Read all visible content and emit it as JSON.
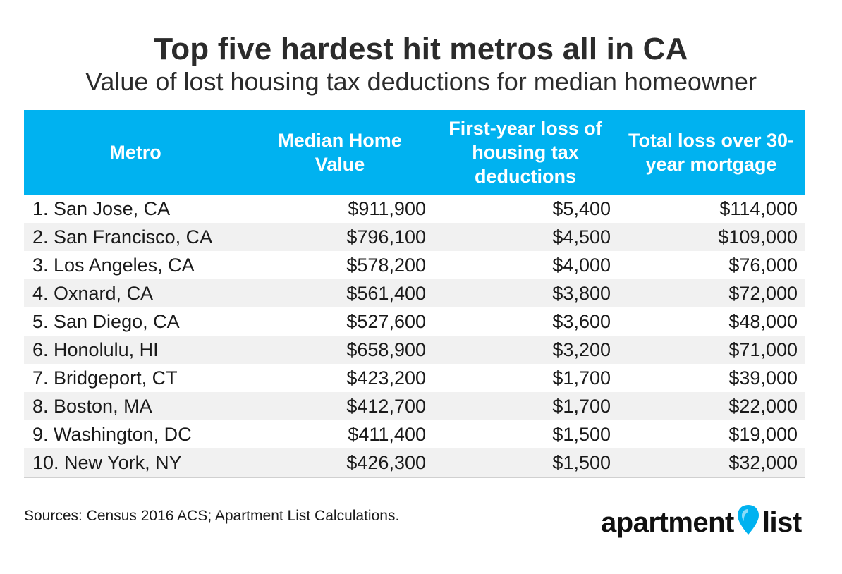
{
  "chart_data": {
    "type": "table",
    "title": "Top five hardest hit metros all in CA",
    "subtitle": "Value of lost housing tax deductions for median homeowner",
    "columns": [
      "Metro",
      "Median Home Value",
      "First-year loss of housing tax deductions",
      "Total loss over 30-year mortgage"
    ],
    "rows": [
      [
        "1. San Jose, CA",
        "$911,900",
        "$5,400",
        "$114,000"
      ],
      [
        "2. San Francisco, CA",
        "$796,100",
        "$4,500",
        "$109,000"
      ],
      [
        "3. Los Angeles, CA",
        "$578,200",
        "$4,000",
        "$76,000"
      ],
      [
        "4. Oxnard, CA",
        "$561,400",
        "$3,800",
        "$72,000"
      ],
      [
        "5. San Diego, CA",
        "$527,600",
        "$3,600",
        "$48,000"
      ],
      [
        "6. Honolulu, HI",
        "$658,900",
        "$3,200",
        "$71,000"
      ],
      [
        "7. Bridgeport, CT",
        "$423,200",
        "$1,700",
        "$39,000"
      ],
      [
        "8. Boston, MA",
        "$412,700",
        "$1,700",
        "$22,000"
      ],
      [
        "9. Washington, DC",
        "$411,400",
        "$1,500",
        "$19,000"
      ],
      [
        "10. New York, NY",
        "$426,300",
        "$1,500",
        "$32,000"
      ]
    ],
    "source": "Sources: Census 2016 ACS; Apartment List Calculations."
  },
  "logo": {
    "text_left": "apartment",
    "text_right": "list",
    "pin_color": "#00b2f0"
  },
  "colors": {
    "header_bg": "#00b2f0",
    "stripe_bg": "#f1f1f1"
  }
}
